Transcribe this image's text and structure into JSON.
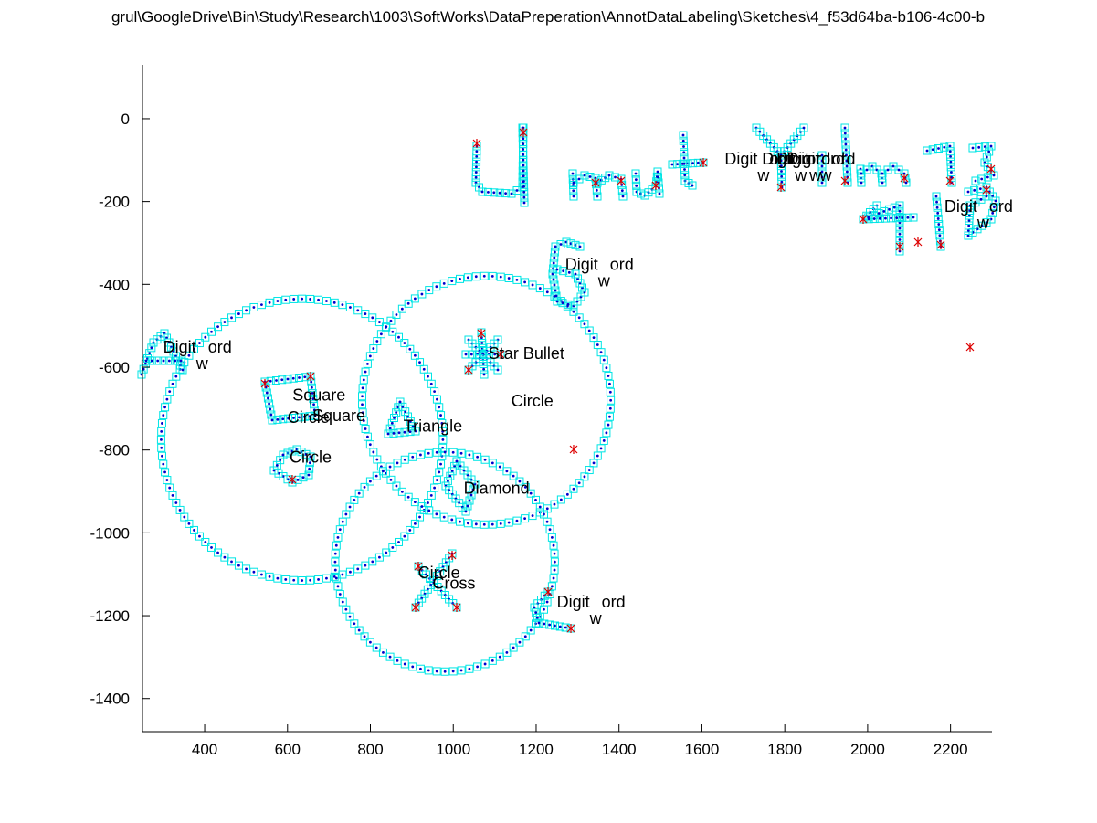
{
  "chart_data": {
    "type": "scatter",
    "title": "grul\\GoogleDrive\\Bin\\Study\\Research\\1003\\SoftWorks\\DataPreperation\\AnnotDataLabeling\\Sketches\\4_f53d64ba-b106-4c00-b",
    "xlabel": "",
    "ylabel": "",
    "xlim": [
      250,
      2300
    ],
    "ylim": [
      -1480,
      130
    ],
    "xticks": [
      400,
      600,
      800,
      1000,
      1200,
      1400,
      1600,
      1800,
      2000,
      2200
    ],
    "yticks": [
      0,
      -200,
      -400,
      -600,
      -800,
      -1000,
      -1200,
      -1400
    ],
    "xtick_labels": [
      "400",
      "600",
      "800",
      "1000",
      "1200",
      "1400",
      "1600",
      "1800",
      "2000",
      "2200"
    ],
    "ytick_labels": [
      "0",
      "-200",
      "-400",
      "-600",
      "-800",
      "-1000",
      "-1200",
      "-1400"
    ],
    "grid": false,
    "colors": {
      "stroke_marker": "#00e5e5",
      "point_dot": "#0000cc",
      "corner_marker": "#dd0000",
      "text": "#000000"
    },
    "circles": [
      {
        "name": "Circle",
        "cx": 635,
        "cy": -775,
        "r": 340
      },
      {
        "name": "Circle",
        "cx": 1080,
        "cy": -680,
        "r": 300
      },
      {
        "name": "Circle",
        "cx": 980,
        "cy": -1070,
        "r": 265
      }
    ],
    "annotations": [
      {
        "text": "Digit",
        "sub": "word",
        "x": 300,
        "y": -565
      },
      {
        "text": "Digit",
        "sub": "word",
        "x": 1270,
        "y": -365
      },
      {
        "text": "Digit",
        "sub": "word",
        "x": 1655,
        "y": -110
      },
      {
        "text": "Digit",
        "sub": "word",
        "x": 1745,
        "y": -110
      },
      {
        "text": "Digit",
        "sub": "word",
        "x": 1780,
        "y": -110
      },
      {
        "text": "Digit",
        "sub": "word",
        "x": 1805,
        "y": -110
      },
      {
        "text": "Digit",
        "sub": "word",
        "x": 2185,
        "y": -225
      },
      {
        "text": "Digit",
        "sub": "word",
        "x": 1250,
        "y": -1180
      },
      {
        "text": "Square",
        "sub": "",
        "x": 612,
        "y": -680
      },
      {
        "text": "Square",
        "sub": "",
        "x": 660,
        "y": -730
      },
      {
        "text": "Circle",
        "sub": "",
        "x": 600,
        "y": -735
      },
      {
        "text": "Circle",
        "sub": "",
        "x": 605,
        "y": -830
      },
      {
        "text": "Triangle",
        "sub": "",
        "x": 880,
        "y": -755
      },
      {
        "text": "Star Bullet",
        "sub": "",
        "x": 1085,
        "y": -580
      },
      {
        "text": "Circle",
        "sub": "",
        "x": 1140,
        "y": -695
      },
      {
        "text": "Diamond",
        "sub": "",
        "x": 1025,
        "y": -905
      },
      {
        "text": "Circle",
        "sub": "",
        "x": 915,
        "y": -1110
      },
      {
        "text": "Cross",
        "sub": "",
        "x": 950,
        "y": -1135
      }
    ]
  }
}
